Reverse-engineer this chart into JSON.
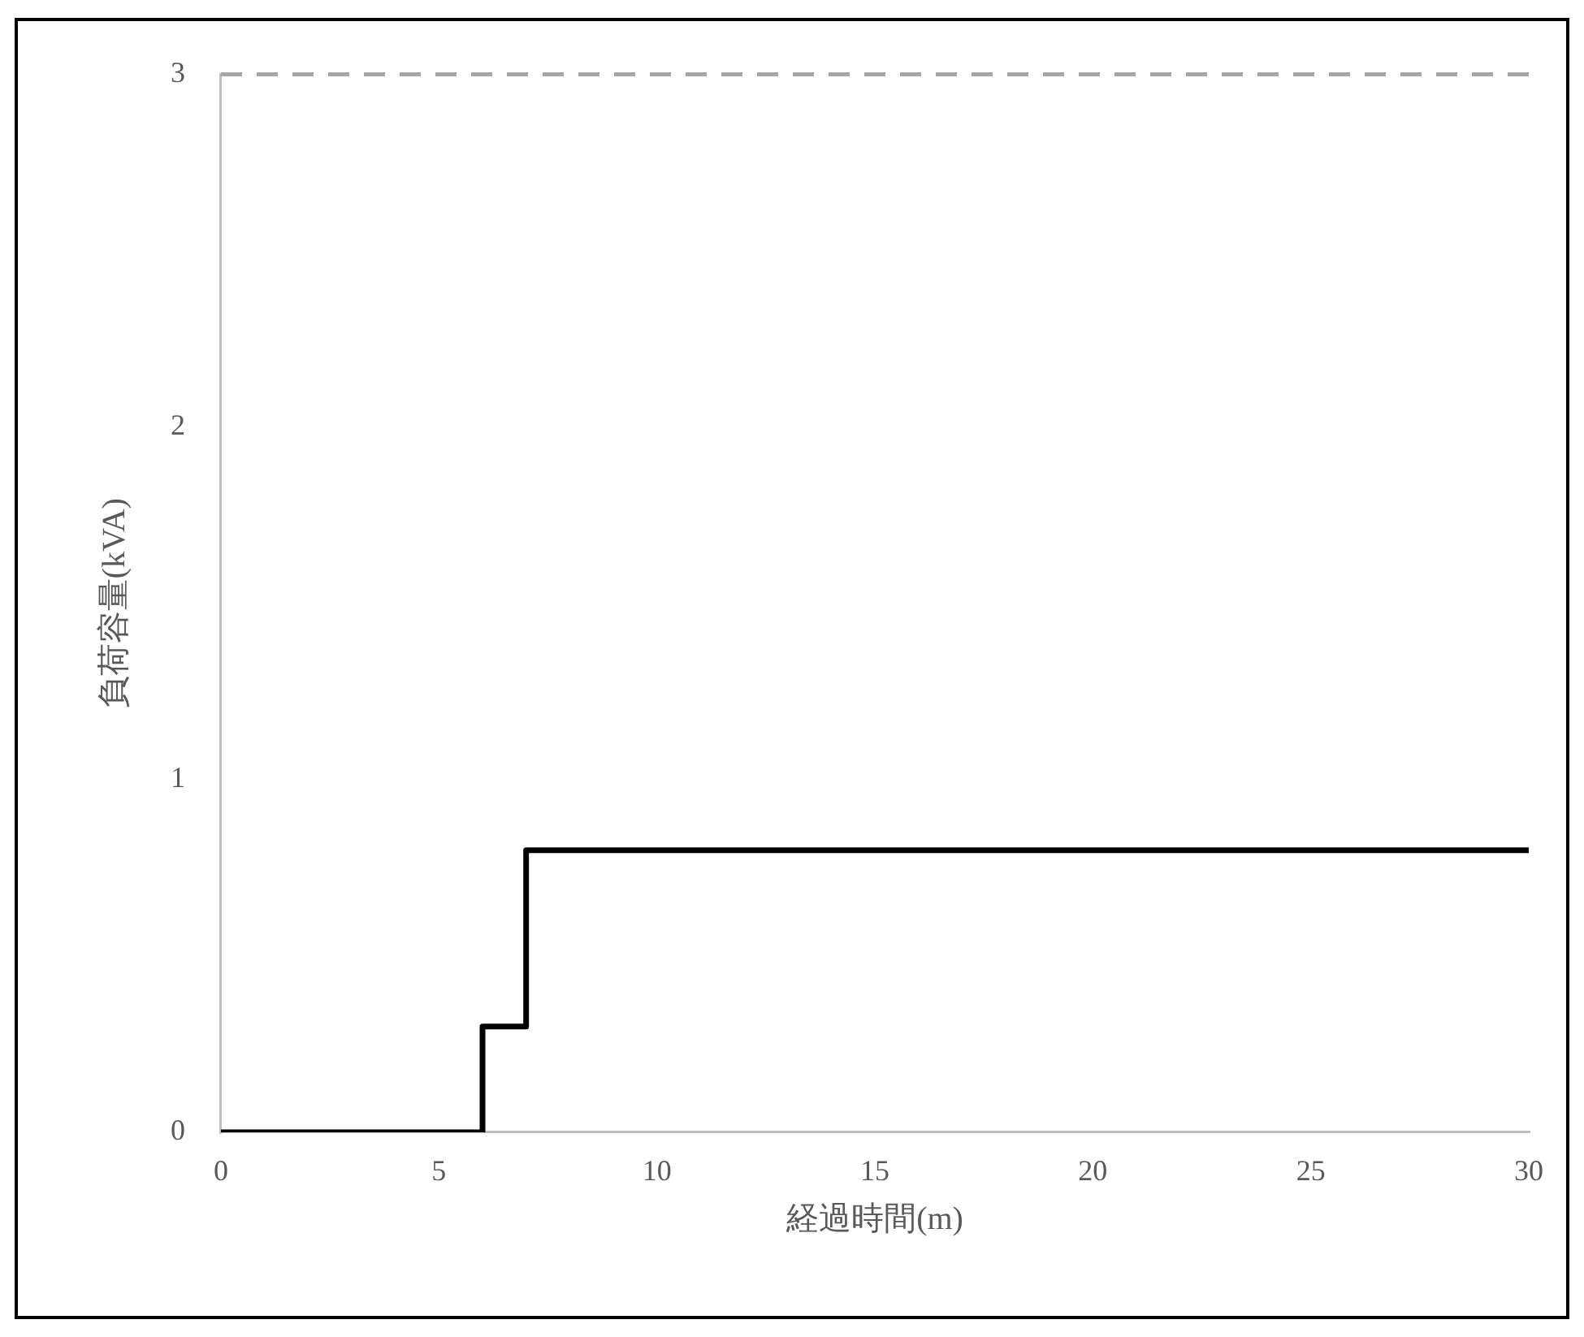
{
  "chart_data": {
    "type": "line",
    "xlabel": "経過時間(m)",
    "ylabel": "負荷容量(kVA)",
    "x": [
      0,
      6,
      6,
      7,
      7,
      30
    ],
    "series": [
      {
        "color": "#000000",
        "values": [
          0,
          0,
          0.3,
          0.3,
          0.8,
          0.8
        ]
      }
    ],
    "xlim": [
      0,
      30
    ],
    "xticks": [
      0,
      5,
      10,
      15,
      20,
      25,
      30
    ],
    "ylim": [
      0,
      3
    ],
    "yticks": [
      0,
      1,
      2,
      3
    ],
    "ref_lines": [
      {
        "axis": "y",
        "value": 3,
        "color": "#a6a6a6",
        "line_style": "dashed"
      }
    ],
    "marker": "none"
  }
}
